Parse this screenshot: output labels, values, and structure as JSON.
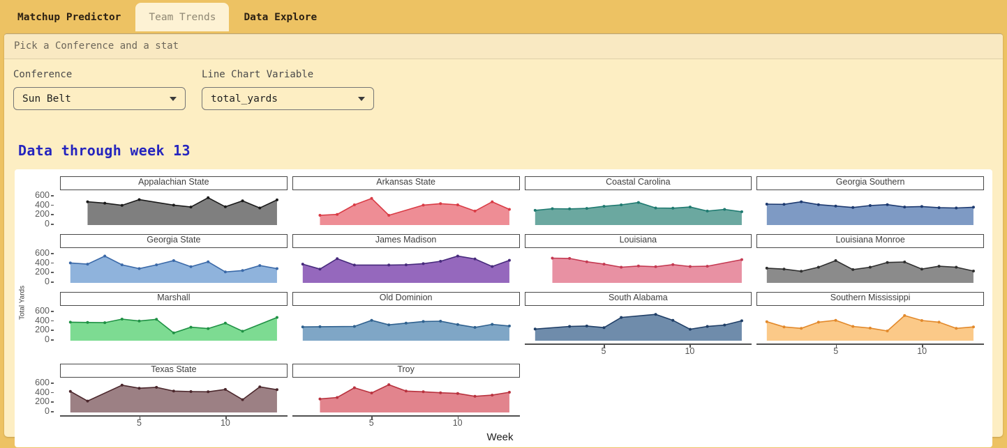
{
  "navbar": {
    "tabs": [
      {
        "label": "Matchup Predictor",
        "active": false
      },
      {
        "label": "Team Trends",
        "active": true
      },
      {
        "label": "Data Explore",
        "active": false
      }
    ]
  },
  "panel_header": "Pick a Conference and a stat",
  "controls": {
    "conference_label": "Conference",
    "conference_value": "Sun Belt",
    "variable_label": "Line Chart Variable",
    "variable_value": "total_yards"
  },
  "heading": "Data through week 13",
  "colors": {
    "page_gold": "#edc263",
    "card_cream": "#fdeec3",
    "active_tab_cream": "#fdf2d4",
    "heading_blue": "#2525be",
    "chart_bg": "#ffffff"
  },
  "chart_data": {
    "type": "area",
    "title": "",
    "xlabel": "Week",
    "ylabel": "Total Yards",
    "xlim": [
      0.4,
      13.6
    ],
    "ylim": [
      0,
      660
    ],
    "x_ticks": [
      5,
      10
    ],
    "y_ticks": [
      600,
      400,
      200,
      0
    ],
    "grid": false,
    "facets": [
      {
        "name": "Appalachian State",
        "line": "#1a1a1a",
        "fill": "#7f7f7f",
        "show_y": true,
        "show_x": false,
        "points": [
          [
            2,
            490
          ],
          [
            3,
            460
          ],
          [
            4,
            415
          ],
          [
            5,
            535
          ],
          [
            7,
            420
          ],
          [
            8,
            380
          ],
          [
            9,
            575
          ],
          [
            10,
            385
          ],
          [
            11,
            510
          ],
          [
            12,
            360
          ],
          [
            13,
            530
          ]
        ]
      },
      {
        "name": "Arkansas State",
        "line": "#d93b45",
        "fill": "#ee8d95",
        "show_y": false,
        "show_x": false,
        "points": [
          [
            2,
            205
          ],
          [
            3,
            225
          ],
          [
            4,
            425
          ],
          [
            5,
            560
          ],
          [
            6,
            205
          ],
          [
            8,
            420
          ],
          [
            9,
            450
          ],
          [
            10,
            425
          ],
          [
            11,
            295
          ],
          [
            12,
            490
          ],
          [
            13,
            330
          ]
        ]
      },
      {
        "name": "Coastal Carolina",
        "line": "#1f7a70",
        "fill": "#6ba8a0",
        "show_y": false,
        "show_x": false,
        "points": [
          [
            1,
            310
          ],
          [
            2,
            345
          ],
          [
            3,
            340
          ],
          [
            4,
            350
          ],
          [
            5,
            395
          ],
          [
            6,
            425
          ],
          [
            7,
            475
          ],
          [
            8,
            360
          ],
          [
            9,
            355
          ],
          [
            10,
            380
          ],
          [
            11,
            295
          ],
          [
            12,
            330
          ],
          [
            13,
            280
          ]
        ]
      },
      {
        "name": "Georgia Southern",
        "line": "#1d3a70",
        "fill": "#7e9ac4",
        "show_y": false,
        "show_x": false,
        "points": [
          [
            1,
            440
          ],
          [
            2,
            435
          ],
          [
            3,
            490
          ],
          [
            4,
            430
          ],
          [
            5,
            400
          ],
          [
            6,
            370
          ],
          [
            7,
            410
          ],
          [
            8,
            430
          ],
          [
            9,
            380
          ],
          [
            10,
            390
          ],
          [
            11,
            365
          ],
          [
            12,
            360
          ],
          [
            13,
            375
          ]
        ]
      },
      {
        "name": "Georgia State",
        "line": "#3a69a8",
        "fill": "#8fb3dc",
        "show_y": true,
        "show_x": false,
        "points": [
          [
            1,
            420
          ],
          [
            2,
            395
          ],
          [
            3,
            565
          ],
          [
            4,
            380
          ],
          [
            5,
            300
          ],
          [
            6,
            380
          ],
          [
            7,
            470
          ],
          [
            8,
            340
          ],
          [
            9,
            445
          ],
          [
            10,
            230
          ],
          [
            11,
            260
          ],
          [
            12,
            365
          ],
          [
            13,
            300
          ]
        ]
      },
      {
        "name": "James Madison",
        "line": "#472a7c",
        "fill": "#9568bd",
        "show_y": false,
        "show_x": false,
        "points": [
          [
            1,
            395
          ],
          [
            2,
            290
          ],
          [
            3,
            510
          ],
          [
            4,
            375
          ],
          [
            6,
            375
          ],
          [
            7,
            380
          ],
          [
            8,
            405
          ],
          [
            9,
            455
          ],
          [
            10,
            565
          ],
          [
            11,
            505
          ],
          [
            12,
            345
          ],
          [
            13,
            475
          ]
        ]
      },
      {
        "name": "Louisiana",
        "line": "#c43a52",
        "fill": "#e891a3",
        "show_y": false,
        "show_x": false,
        "points": [
          [
            2,
            520
          ],
          [
            3,
            515
          ],
          [
            4,
            445
          ],
          [
            5,
            395
          ],
          [
            6,
            330
          ],
          [
            7,
            355
          ],
          [
            8,
            340
          ],
          [
            9,
            385
          ],
          [
            10,
            345
          ],
          [
            11,
            350
          ],
          [
            13,
            490
          ]
        ]
      },
      {
        "name": "Louisiana Monroe",
        "line": "#2f2f2f",
        "fill": "#8b8b8b",
        "show_y": false,
        "show_x": false,
        "points": [
          [
            1,
            310
          ],
          [
            2,
            290
          ],
          [
            3,
            245
          ],
          [
            4,
            330
          ],
          [
            5,
            470
          ],
          [
            6,
            280
          ],
          [
            7,
            330
          ],
          [
            8,
            430
          ],
          [
            9,
            440
          ],
          [
            10,
            290
          ],
          [
            11,
            350
          ],
          [
            12,
            330
          ],
          [
            13,
            250
          ]
        ]
      },
      {
        "name": "Marshall",
        "line": "#1f9144",
        "fill": "#7ddb92",
        "show_y": true,
        "show_x": false,
        "points": [
          [
            1,
            390
          ],
          [
            2,
            385
          ],
          [
            3,
            380
          ],
          [
            4,
            455
          ],
          [
            5,
            415
          ],
          [
            6,
            450
          ],
          [
            7,
            165
          ],
          [
            8,
            285
          ],
          [
            9,
            255
          ],
          [
            10,
            370
          ],
          [
            11,
            200
          ],
          [
            13,
            490
          ]
        ]
      },
      {
        "name": "Old Dominion",
        "line": "#2f618f",
        "fill": "#7fa6c6",
        "show_y": false,
        "show_x": false,
        "points": [
          [
            1,
            290
          ],
          [
            2,
            295
          ],
          [
            4,
            300
          ],
          [
            5,
            430
          ],
          [
            6,
            335
          ],
          [
            7,
            370
          ],
          [
            8,
            405
          ],
          [
            9,
            410
          ],
          [
            10,
            340
          ],
          [
            11,
            280
          ],
          [
            12,
            345
          ],
          [
            13,
            310
          ]
        ]
      },
      {
        "name": "South Alabama",
        "line": "#1f3e66",
        "fill": "#6f8cab",
        "show_y": false,
        "show_x": true,
        "points": [
          [
            1,
            245
          ],
          [
            3,
            300
          ],
          [
            4,
            310
          ],
          [
            5,
            275
          ],
          [
            6,
            490
          ],
          [
            8,
            555
          ],
          [
            9,
            430
          ],
          [
            10,
            240
          ],
          [
            11,
            300
          ],
          [
            12,
            330
          ],
          [
            13,
            420
          ]
        ]
      },
      {
        "name": "Southern Mississippi",
        "line": "#e2892b",
        "fill": "#fbc988",
        "show_y": false,
        "show_x": true,
        "points": [
          [
            1,
            400
          ],
          [
            2,
            290
          ],
          [
            3,
            260
          ],
          [
            4,
            390
          ],
          [
            5,
            430
          ],
          [
            6,
            300
          ],
          [
            7,
            265
          ],
          [
            8,
            205
          ],
          [
            9,
            530
          ],
          [
            10,
            425
          ],
          [
            11,
            390
          ],
          [
            12,
            260
          ],
          [
            13,
            290
          ]
        ]
      },
      {
        "name": "Texas State",
        "line": "#4b272c",
        "fill": "#9c8084",
        "show_y": true,
        "show_x": true,
        "points": [
          [
            1,
            445
          ],
          [
            2,
            240
          ],
          [
            4,
            575
          ],
          [
            5,
            510
          ],
          [
            6,
            530
          ],
          [
            7,
            450
          ],
          [
            8,
            440
          ],
          [
            9,
            435
          ],
          [
            10,
            485
          ],
          [
            11,
            270
          ],
          [
            12,
            540
          ],
          [
            13,
            480
          ]
        ]
      },
      {
        "name": "Troy",
        "line": "#b8323e",
        "fill": "#e2848d",
        "show_y": false,
        "show_x": true,
        "points": [
          [
            2,
            285
          ],
          [
            3,
            315
          ],
          [
            4,
            520
          ],
          [
            5,
            410
          ],
          [
            6,
            585
          ],
          [
            7,
            450
          ],
          [
            8,
            435
          ],
          [
            9,
            415
          ],
          [
            10,
            400
          ],
          [
            11,
            340
          ],
          [
            12,
            365
          ],
          [
            13,
            425
          ]
        ]
      }
    ]
  }
}
